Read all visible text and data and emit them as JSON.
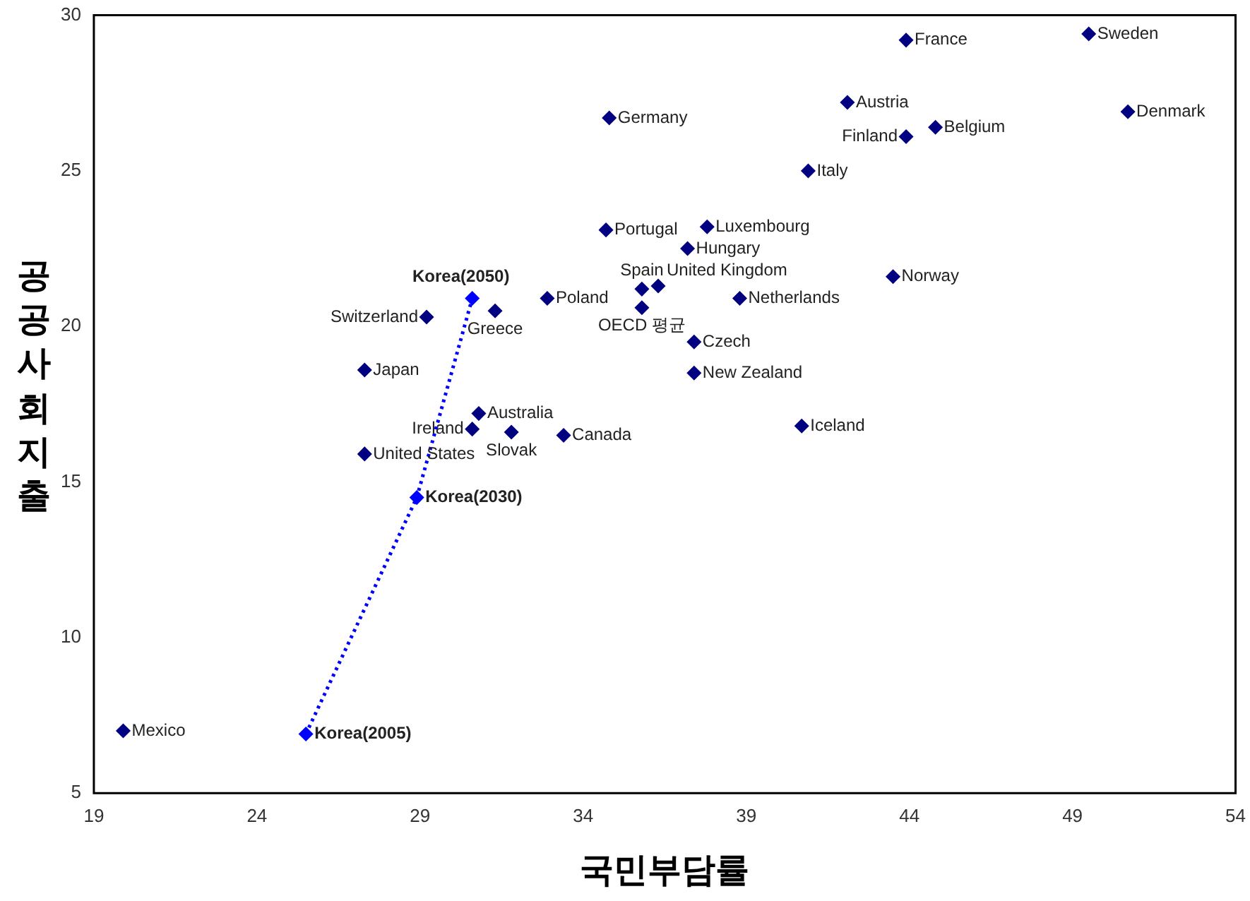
{
  "chart_data": {
    "type": "scatter",
    "xlabel": "국민부담률",
    "ylabel": "공공사회지출",
    "xlim": [
      19,
      54
    ],
    "xticks": [
      19,
      24,
      29,
      34,
      39,
      44,
      49,
      54
    ],
    "ylim": [
      5,
      30
    ],
    "yticks": [
      5,
      10,
      15,
      20,
      25,
      30
    ],
    "grid": false,
    "legend": false,
    "marker": "diamond",
    "series": [
      {
        "type": "scatter",
        "color": "#000080",
        "x": [
          19.9,
          27.3,
          27.3,
          30.8,
          30.6,
          31.8,
          33.4,
          29.2,
          31.3,
          32.9,
          34.8,
          34.7,
          37.8,
          37.2,
          35.8,
          36.3,
          38.8,
          35.8,
          37.4,
          37.4,
          40.7,
          43.5,
          40.9,
          42.1,
          43.9,
          44.8,
          43.9,
          49.5,
          50.7
        ],
        "values": [
          7.0,
          18.6,
          15.9,
          17.2,
          16.7,
          16.6,
          16.5,
          20.3,
          20.5,
          20.9,
          26.7,
          23.1,
          23.2,
          22.5,
          21.2,
          21.3,
          20.9,
          20.6,
          19.5,
          18.5,
          16.8,
          21.6,
          25.0,
          27.2,
          26.1,
          26.4,
          29.2,
          29.4,
          26.9
        ]
      },
      {
        "type": "line",
        "color": "#0000ff",
        "line_style": "dotted",
        "x": [
          25.5,
          28.9,
          30.6
        ],
        "values": [
          6.9,
          14.5,
          20.9
        ]
      }
    ],
    "annotations": [
      {
        "text": "Mexico",
        "x": 19.9,
        "y": 7.0
      },
      {
        "text": "Japan",
        "x": 27.3,
        "y": 18.6
      },
      {
        "text": "United States",
        "x": 27.3,
        "y": 15.9
      },
      {
        "text": "Australia",
        "x": 30.8,
        "y": 17.2
      },
      {
        "text": "Ireland",
        "x": 30.6,
        "y": 16.7
      },
      {
        "text": "Slovak",
        "x": 31.8,
        "y": 16.6
      },
      {
        "text": "Canada",
        "x": 33.4,
        "y": 16.5
      },
      {
        "text": "Switzerland",
        "x": 29.2,
        "y": 20.3
      },
      {
        "text": "Greece",
        "x": 31.3,
        "y": 20.5
      },
      {
        "text": "Poland",
        "x": 32.9,
        "y": 20.9
      },
      {
        "text": "Germany",
        "x": 34.8,
        "y": 26.7
      },
      {
        "text": "Portugal",
        "x": 34.7,
        "y": 23.1
      },
      {
        "text": "Luxembourg",
        "x": 37.8,
        "y": 23.2
      },
      {
        "text": "Hungary",
        "x": 37.2,
        "y": 22.5
      },
      {
        "text": "Spain",
        "x": 35.8,
        "y": 21.2
      },
      {
        "text": "United Kingdom",
        "x": 36.3,
        "y": 21.3
      },
      {
        "text": "Netherlands",
        "x": 38.8,
        "y": 20.9
      },
      {
        "text": "OECD 평균",
        "x": 35.8,
        "y": 20.6
      },
      {
        "text": "Czech",
        "x": 37.4,
        "y": 19.5
      },
      {
        "text": "New Zealand",
        "x": 37.4,
        "y": 18.5
      },
      {
        "text": "Iceland",
        "x": 40.7,
        "y": 16.8
      },
      {
        "text": "Norway",
        "x": 43.5,
        "y": 21.6
      },
      {
        "text": "Italy",
        "x": 40.9,
        "y": 25.0
      },
      {
        "text": "Austria",
        "x": 42.1,
        "y": 27.2
      },
      {
        "text": "Finland",
        "x": 43.9,
        "y": 26.1
      },
      {
        "text": "Belgium",
        "x": 44.8,
        "y": 26.4
      },
      {
        "text": "France",
        "x": 43.9,
        "y": 29.2
      },
      {
        "text": "Sweden",
        "x": 49.5,
        "y": 29.4
      },
      {
        "text": "Denmark",
        "x": 50.7,
        "y": 26.9
      },
      {
        "text": "Korea(2005)",
        "x": 25.5,
        "y": 6.9
      },
      {
        "text": "Korea(2030)",
        "x": 28.9,
        "y": 14.5
      },
      {
        "text": "Korea(2050)",
        "x": 30.6,
        "y": 20.9
      }
    ]
  }
}
